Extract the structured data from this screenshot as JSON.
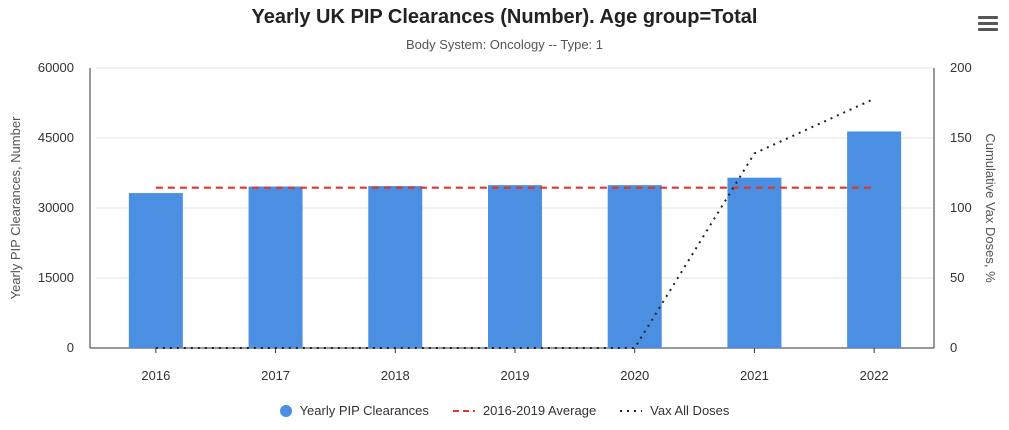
{
  "chart_data": {
    "type": "bar",
    "title": "Yearly UK PIP Clearances (Number). Age group=Total",
    "subtitle": "Body System: Oncology -- Type: 1",
    "categories": [
      "2016",
      "2017",
      "2018",
      "2019",
      "2020",
      "2021",
      "2022"
    ],
    "series": [
      {
        "name": "Yearly PIP Clearances",
        "type": "bar",
        "axis": "left",
        "color": "#4a8fe2",
        "values": [
          33200,
          34600,
          34700,
          34900,
          34900,
          36500,
          46400
        ]
      },
      {
        "name": "2016-2019 Average",
        "type": "line",
        "style": "dashed",
        "axis": "left",
        "color": "#e0372b",
        "values": [
          34350,
          34350,
          34350,
          34350,
          34350,
          34350,
          34350
        ]
      },
      {
        "name": "Vax All Doses",
        "type": "line",
        "style": "dotted",
        "axis": "right",
        "color": "#222222",
        "values": [
          0,
          0,
          0,
          0,
          0,
          139,
          178
        ]
      }
    ],
    "ylabel": "Yearly PIP Clearances, Number",
    "ylabel_right": "Cumulative Vax Doses, %",
    "ylim": [
      0,
      60000
    ],
    "yticks": [
      "0",
      "15000",
      "30000",
      "45000",
      "60000"
    ],
    "ylim_right": [
      0,
      200
    ],
    "yticks_right": [
      "0",
      "50",
      "100",
      "150",
      "200"
    ],
    "grid": true,
    "legend_position": "bottom"
  },
  "menu_icon": "hamburger-menu-icon"
}
